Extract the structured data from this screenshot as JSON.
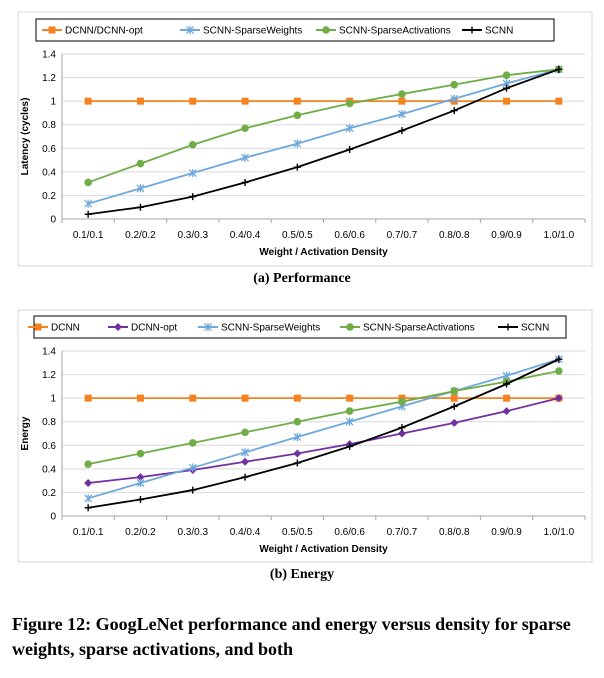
{
  "charts": [
    {
      "subcaption": "(a) Performance",
      "chart_data": {
        "type": "line",
        "ylabel": "Latency (cycles)",
        "xlabel": "Weight / Activation Density",
        "categories": [
          "0.1/0.1",
          "0.2/0.2",
          "0.3/0.3",
          "0.4/0.4",
          "0.5/0.5",
          "0.6/0.6",
          "0.7/0.7",
          "0.8/0.8",
          "0.9/0.9",
          "1.0/1.0"
        ],
        "ylim": [
          0,
          1.4
        ],
        "yticks": [
          "0",
          "0.2",
          "0.4",
          "0.6",
          "0.8",
          "1",
          "1.2",
          "1.4"
        ],
        "grid": true,
        "legend": "top",
        "series": [
          {
            "name": "DCNN/DCNN-opt",
            "color": "#f58220",
            "marker": "square",
            "values": [
              1,
              1,
              1,
              1,
              1,
              1,
              1,
              1,
              1,
              1
            ]
          },
          {
            "name": "SCNN-SparseWeights",
            "color": "#6fa8dc",
            "marker": "star",
            "values": [
              0.13,
              0.26,
              0.39,
              0.52,
              0.64,
              0.77,
              0.89,
              1.02,
              1.15,
              1.27
            ]
          },
          {
            "name": "SCNN-SparseActivations",
            "color": "#70ad47",
            "marker": "circle",
            "values": [
              0.31,
              0.47,
              0.63,
              0.77,
              0.88,
              0.98,
              1.06,
              1.14,
              1.22,
              1.27
            ]
          },
          {
            "name": "SCNN",
            "color": "#000000",
            "marker": "plus",
            "values": [
              0.04,
              0.1,
              0.19,
              0.31,
              0.44,
              0.59,
              0.75,
              0.92,
              1.11,
              1.27
            ]
          }
        ]
      }
    },
    {
      "subcaption": "(b) Energy",
      "chart_data": {
        "type": "line",
        "ylabel": "Energy",
        "xlabel": "Weight / Activation Density",
        "categories": [
          "0.1/0.1",
          "0.2/0.2",
          "0.3/0.3",
          "0.4/0.4",
          "0.5/0.5",
          "0.6/0.6",
          "0.7/0.7",
          "0.8/0.8",
          "0.9/0.9",
          "1.0/1.0"
        ],
        "ylim": [
          0,
          1.4
        ],
        "yticks": [
          "0",
          "0.2",
          "0.4",
          "0.6",
          "0.8",
          "1",
          "1.2",
          "1.4"
        ],
        "grid": true,
        "legend": "top",
        "series": [
          {
            "name": "DCNN",
            "color": "#f58220",
            "marker": "square",
            "values": [
              1,
              1,
              1,
              1,
              1,
              1,
              1,
              1,
              1,
              1
            ]
          },
          {
            "name": "DCNN-opt",
            "color": "#7030a0",
            "marker": "diamond",
            "values": [
              0.28,
              0.33,
              0.39,
              0.46,
              0.53,
              0.61,
              0.7,
              0.79,
              0.89,
              1.0
            ]
          },
          {
            "name": "SCNN-SparseWeights",
            "color": "#6fa8dc",
            "marker": "star",
            "values": [
              0.15,
              0.28,
              0.41,
              0.54,
              0.67,
              0.8,
              0.93,
              1.06,
              1.19,
              1.33
            ]
          },
          {
            "name": "SCNN-SparseActivations",
            "color": "#70ad47",
            "marker": "circle",
            "values": [
              0.44,
              0.53,
              0.62,
              0.71,
              0.8,
              0.89,
              0.97,
              1.06,
              1.14,
              1.23
            ]
          },
          {
            "name": "SCNN",
            "color": "#000000",
            "marker": "plus",
            "values": [
              0.07,
              0.14,
              0.22,
              0.33,
              0.45,
              0.59,
              0.75,
              0.93,
              1.12,
              1.33
            ]
          }
        ]
      }
    }
  ],
  "figure_caption": "Figure 12: GoogLeNet performance and energy versus density for sparse weights, sparse activations, and both"
}
